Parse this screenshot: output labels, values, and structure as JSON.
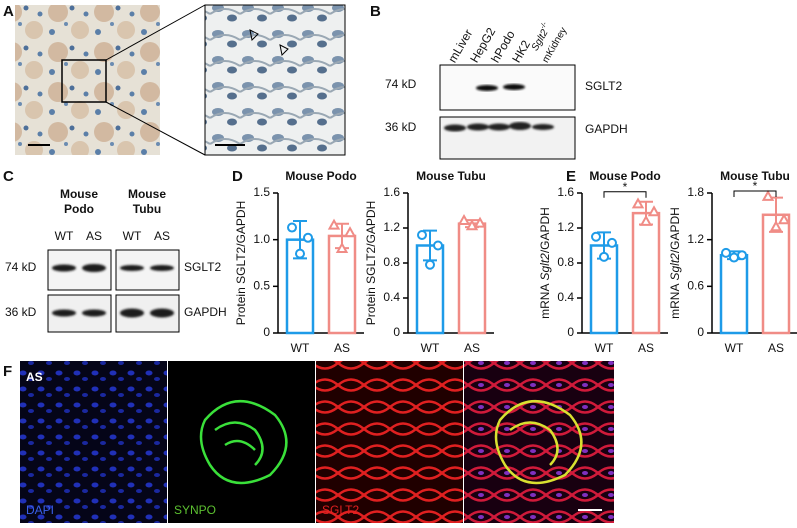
{
  "panel_labels": [
    "A",
    "B",
    "C",
    "D",
    "E",
    "F"
  ],
  "blot_B": {
    "lanes": [
      "mLiver",
      "HepG2",
      "hPodo",
      "HK2"
    ],
    "knockout_lane": [
      "Sglt2",
      "-/-",
      "mKidney"
    ],
    "rows": [
      {
        "size": "74 kD",
        "protein": "SGLT2"
      },
      {
        "size": "36 kD",
        "protein": "GAPDH"
      }
    ]
  },
  "blot_C": {
    "groups": [
      {
        "name": [
          "Mouse",
          "Podo"
        ],
        "lanes": [
          "WT",
          "AS"
        ]
      },
      {
        "name": [
          "Mouse",
          "Tubu"
        ],
        "lanes": [
          "WT",
          "AS"
        ]
      }
    ],
    "rows": [
      {
        "size": "74 kD",
        "protein": "SGLT2"
      },
      {
        "size": "36 kD",
        "protein": "GAPDH"
      }
    ]
  },
  "chart_data": [
    {
      "type": "bar",
      "title": "Mouse Podo",
      "ylabel": "Protein SGLT2/GAPDH",
      "categories": [
        "WT",
        "AS"
      ],
      "colors": [
        "#1e9be8",
        "#f08c86"
      ],
      "values": [
        1.0,
        1.04
      ],
      "errors": [
        0.2,
        0.13
      ],
      "points": [
        [
          1.13,
          0.85,
          1.02
        ],
        [
          1.15,
          0.9,
          1.07
        ]
      ],
      "ylim": [
        0,
        1.5
      ],
      "yticks": [
        0,
        0.5,
        {
          "value": 1,
          "label": "1.0"
        },
        1.5
      ]
    },
    {
      "type": "bar",
      "title": "Mouse Tubu",
      "ylabel": "Protein SGLT2/GAPDH",
      "categories": [
        "WT",
        "AS"
      ],
      "colors": [
        "#1e9be8",
        "#f08c86"
      ],
      "values": [
        1.0,
        1.25
      ],
      "errors": [
        0.17,
        0.04
      ],
      "points": [
        [
          1.12,
          0.78,
          1.0
        ],
        [
          1.28,
          1.22,
          1.25
        ]
      ],
      "ylim": [
        0,
        1.6
      ],
      "yticks": [
        0,
        0.4,
        0.8,
        1.2,
        1.6
      ]
    },
    {
      "type": "bar",
      "title": "Mouse Podo",
      "ylabel": [
        "mRNA",
        "Sglt2",
        "/GAPDH"
      ],
      "categories": [
        "WT",
        "AS"
      ],
      "colors": [
        "#1e9be8",
        "#f08c86"
      ],
      "values": [
        1.0,
        1.37
      ],
      "errors": [
        0.15,
        0.13
      ],
      "points": [
        [
          1.1,
          0.87,
          1.03
        ],
        [
          1.47,
          1.27,
          1.38
        ]
      ],
      "ylim": [
        0,
        1.6
      ],
      "yticks": [
        0,
        0.4,
        0.8,
        1.2,
        1.6
      ],
      "significance": "*"
    },
    {
      "type": "bar",
      "title": "Mouse Tubu",
      "ylabel": [
        "mRNA",
        "Sglt2",
        "/GAPDH"
      ],
      "categories": [
        "WT",
        "AS"
      ],
      "colors": [
        "#1e9be8",
        "#f08c86"
      ],
      "values": [
        1.0,
        1.52
      ],
      "errors": [
        0.05,
        0.22
      ],
      "points": [
        [
          1.03,
          0.97,
          1.0
        ],
        [
          1.75,
          1.36,
          1.45
        ]
      ],
      "ylim": [
        0,
        1.8
      ],
      "yticks": [
        0,
        0.6,
        1.2,
        1.8
      ],
      "significance": "*"
    }
  ],
  "fluorescence": {
    "condition": "AS",
    "channels": [
      "DAPI",
      "SYNPO",
      "SGLT2"
    ]
  }
}
